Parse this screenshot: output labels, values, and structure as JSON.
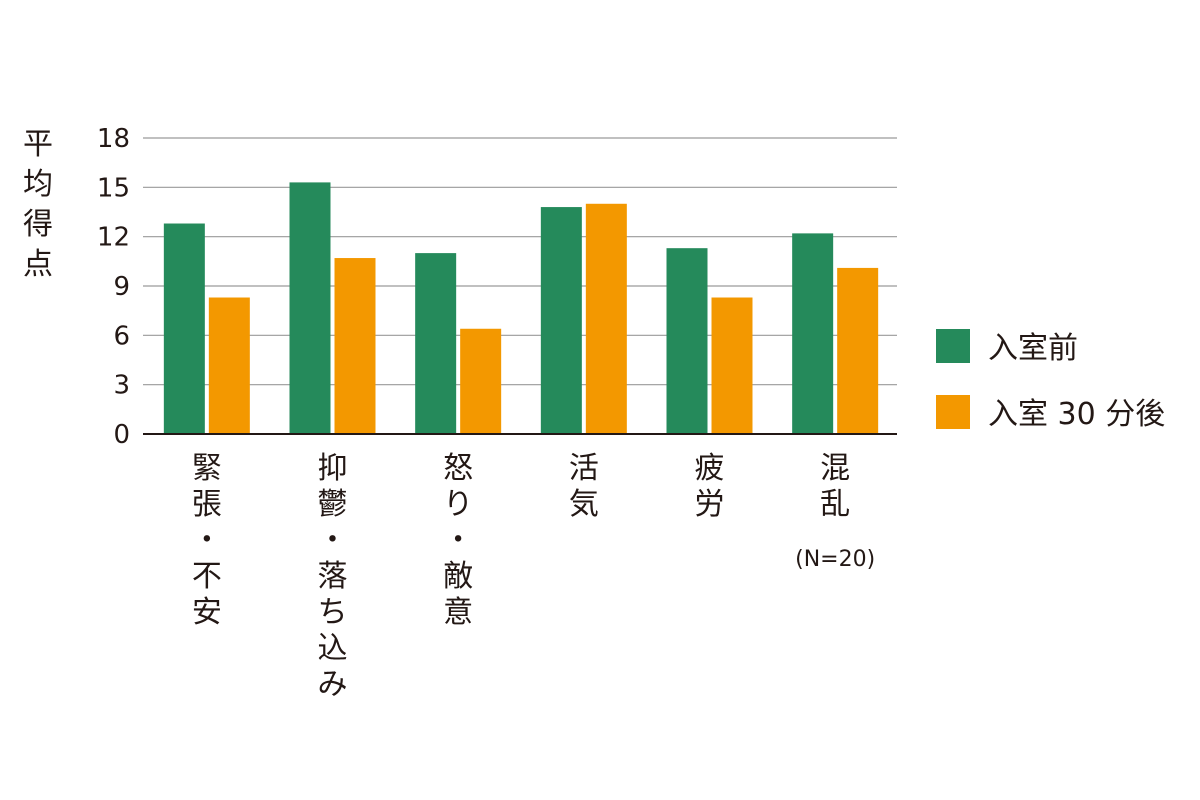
{
  "chart_data": {
    "type": "bar",
    "ylabel": "平均得点",
    "ylim": [
      0,
      18
    ],
    "yticks": [
      0,
      3,
      6,
      9,
      12,
      15,
      18
    ],
    "grid": true,
    "legend_position": "right",
    "categories": [
      [
        "緊",
        "張",
        "・",
        "不",
        "安"
      ],
      [
        "抑",
        "鬱",
        "・",
        "落",
        "ち",
        "込",
        "み"
      ],
      [
        "怒",
        "り",
        "・",
        "敵",
        "意"
      ],
      [
        "活",
        "気"
      ],
      [
        "疲",
        "労"
      ],
      [
        "混",
        "乱"
      ]
    ],
    "series": [
      {
        "name": "入室前",
        "color": "#258a5b",
        "values": [
          12.8,
          15.3,
          11.0,
          13.8,
          11.3,
          12.2
        ]
      },
      {
        "name": "入室 30 分後",
        "color": "#f39800",
        "values": [
          8.3,
          10.7,
          6.4,
          14.0,
          8.3,
          10.1
        ]
      }
    ],
    "annotation": "(N=20)"
  }
}
